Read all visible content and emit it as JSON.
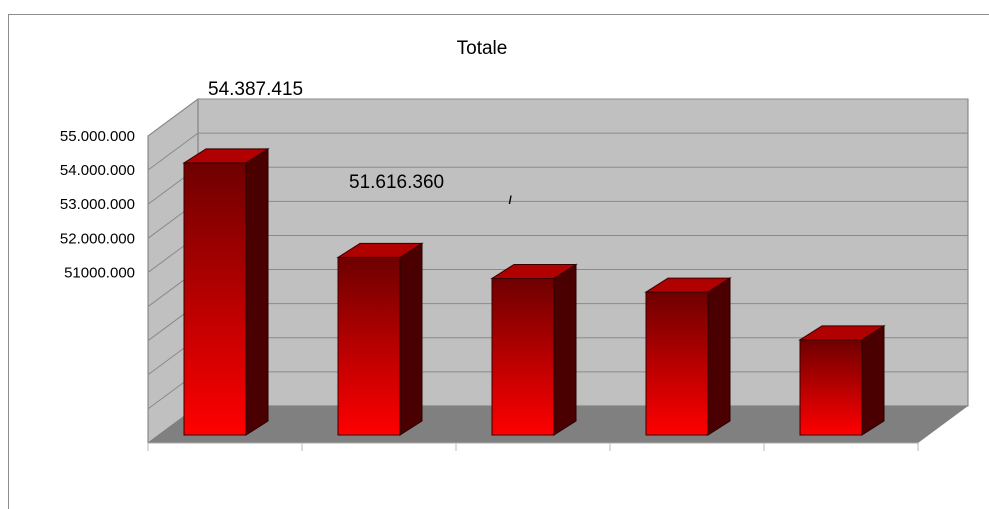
{
  "chart_data": {
    "type": "bar",
    "title": "Totale",
    "xlabel": "",
    "ylabel": "",
    "categories": [
      "",
      "",
      "",
      "",
      ""
    ],
    "series": [
      {
        "values": [
          54387415,
          51616360,
          51000000,
          50600000,
          49200000
        ]
      }
    ],
    "data_labels": [
      "54.387.415",
      "51.616.360",
      "",
      "",
      ""
    ],
    "ylim": [
      46000000,
      55000000
    ],
    "y_tick_values": [
      51000000,
      52000000,
      53000000,
      54000000,
      55000000
    ],
    "y_tick_labels": [
      "51000.000",
      "52.000.000",
      "53.000.000",
      "54.000.000",
      "55.000.000"
    ],
    "grid": true,
    "three_d": true,
    "colors": {
      "bar_light": "#ff0000",
      "bar_dark": "#6e0000",
      "wall": "#c0c0c0",
      "floor": "#808080",
      "grid": "#8a8a8a"
    }
  }
}
